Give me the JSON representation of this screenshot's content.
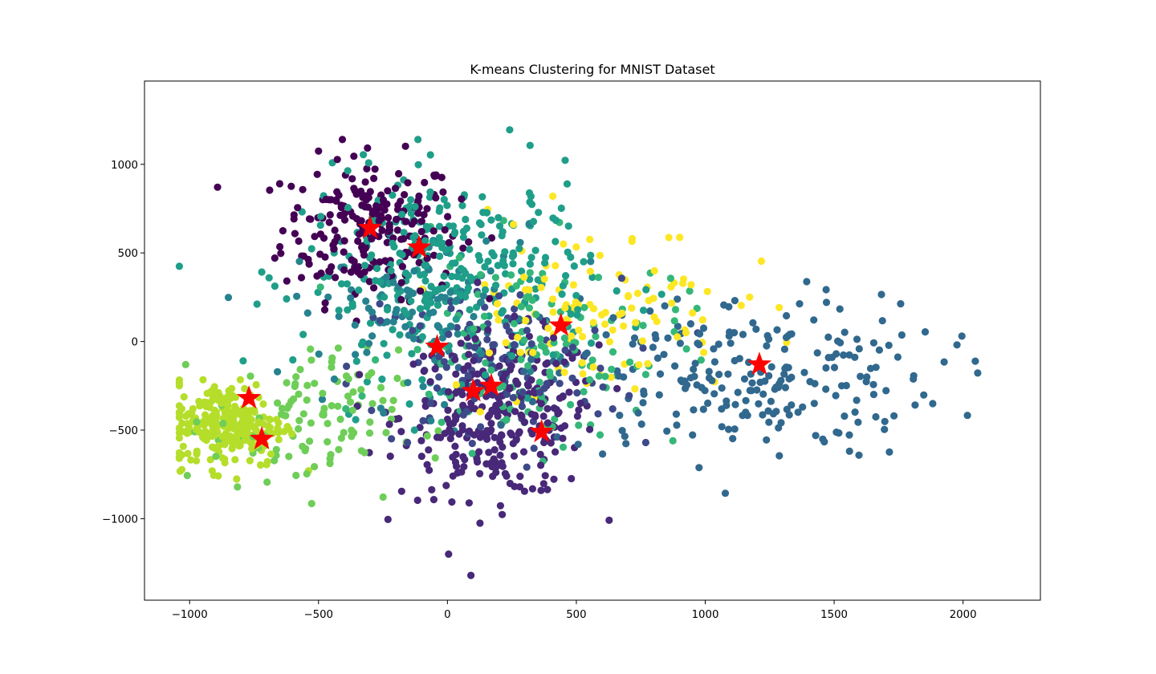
{
  "chart_data": {
    "type": "scatter",
    "title": "K-means Clustering for MNIST Dataset",
    "xlabel": "",
    "ylabel": "",
    "xlim": [
      -1175,
      2300
    ],
    "ylim": [
      -1460,
      1470
    ],
    "xticks": [
      -1000,
      -500,
      0,
      500,
      1000,
      1500,
      2000
    ],
    "yticks": [
      -1000,
      -500,
      0,
      500,
      1000
    ],
    "xtick_labels": [
      "−1000",
      "−500",
      "0",
      "500",
      "1000",
      "1500",
      "2000"
    ],
    "ytick_labels": [
      "−1000",
      "−500",
      "0",
      "500",
      "1000"
    ],
    "grid": false,
    "legend": "none",
    "point_count_note": "approximate cluster extents; points colored by viridis cluster index",
    "clusters": [
      {
        "id": 0,
        "color": "#440154",
        "center": [
          -300,
          640
        ],
        "spread": [
          170,
          200
        ],
        "n": 230
      },
      {
        "id": 1,
        "color": "#482878",
        "center": [
          200,
          -420
        ],
        "spread": [
          190,
          230
        ],
        "n": 300
      },
      {
        "id": 2,
        "color": "#3e4989",
        "center": [
          150,
          -150
        ],
        "spread": [
          260,
          250
        ],
        "n": 120
      },
      {
        "id": 3,
        "color": "#31688e",
        "center": [
          1150,
          -200
        ],
        "spread": [
          380,
          230
        ],
        "n": 240
      },
      {
        "id": 4,
        "color": "#26828e",
        "center": [
          -100,
          150
        ],
        "spread": [
          250,
          250
        ],
        "n": 110
      },
      {
        "id": 5,
        "color": "#1f9e89",
        "center": [
          0,
          380
        ],
        "spread": [
          280,
          280
        ],
        "n": 330
      },
      {
        "id": 6,
        "color": "#35b779",
        "center": [
          350,
          -50
        ],
        "spread": [
          280,
          280
        ],
        "n": 140
      },
      {
        "id": 7,
        "color": "#6ece58",
        "center": [
          -550,
          -450
        ],
        "spread": [
          180,
          200
        ],
        "n": 110
      },
      {
        "id": 8,
        "color": "#b5de2b",
        "center": [
          -850,
          -470
        ],
        "spread": [
          110,
          120
        ],
        "n": 260
      },
      {
        "id": 9,
        "color": "#fde725",
        "center": [
          550,
          200
        ],
        "spread": [
          280,
          250
        ],
        "n": 120
      }
    ],
    "centroids": [
      {
        "x": -300,
        "y": 640
      },
      {
        "x": -110,
        "y": 530
      },
      {
        "x": -40,
        "y": -30
      },
      {
        "x": 440,
        "y": 90
      },
      {
        "x": 1210,
        "y": -130
      },
      {
        "x": -770,
        "y": -320
      },
      {
        "x": -720,
        "y": -550
      },
      {
        "x": 100,
        "y": -280
      },
      {
        "x": 170,
        "y": -250
      },
      {
        "x": 365,
        "y": -510
      }
    ],
    "centroid_color": "#ff0000",
    "centroid_marker": "star"
  }
}
